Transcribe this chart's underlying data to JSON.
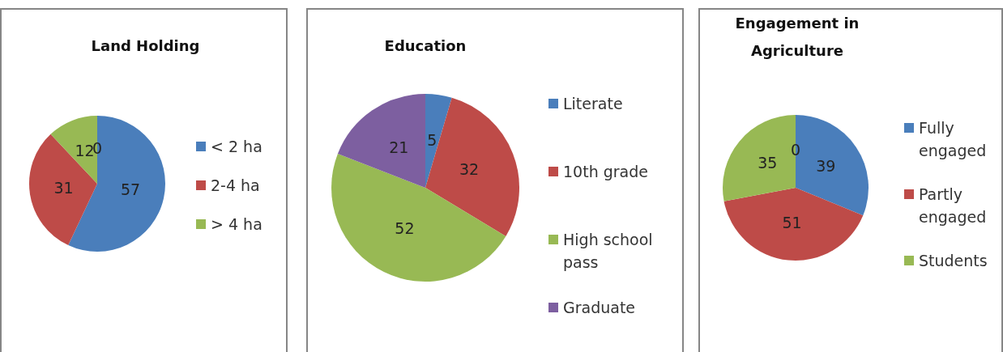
{
  "chart_data": [
    {
      "type": "pie",
      "title": "Land Holding",
      "categories": [
        "< 2 ha",
        "2-4 ha",
        "> 4 ha",
        null
      ],
      "values": [
        57,
        31,
        12,
        0
      ],
      "value_labels": [
        "57",
        "31",
        "12",
        "0"
      ],
      "colors": [
        "#4a7ebb",
        "#be4b48",
        "#98b954",
        "#7d5fa0"
      ],
      "legend": "right"
    },
    {
      "type": "pie",
      "title": "Education",
      "categories": [
        "Literate",
        "10th grade",
        "High school pass",
        "Graduate"
      ],
      "values": [
        5,
        32,
        52,
        21
      ],
      "colors": [
        "#4a7ebb",
        "#be4b48",
        "#98b954",
        "#7d5fa0"
      ],
      "data_labels": true,
      "legend": "right"
    },
    {
      "type": "pie",
      "title": "Engagement in Agriculture",
      "categories": [
        "Fully engaged",
        "Partly engaged",
        "Students",
        null
      ],
      "values": [
        39,
        51,
        35,
        0
      ],
      "value_labels": [
        "39",
        "51",
        "35",
        "0"
      ],
      "colors": [
        "#4a7ebb",
        "#be4b48",
        "#98b954",
        "#7d5fa0"
      ],
      "legend": "right"
    }
  ]
}
